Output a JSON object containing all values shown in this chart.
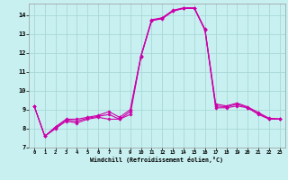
{
  "xlabel": "Windchill (Refroidissement éolien,°C)",
  "bg_color": "#c8f0f0",
  "grid_color": "#a8d8d8",
  "line_color": "#cc00aa",
  "xlim": [
    -0.5,
    23.5
  ],
  "ylim": [
    7,
    14.6
  ],
  "yticks": [
    7,
    8,
    9,
    10,
    11,
    12,
    13,
    14
  ],
  "xticks": [
    0,
    1,
    2,
    3,
    4,
    5,
    6,
    7,
    8,
    9,
    10,
    11,
    12,
    13,
    14,
    15,
    16,
    17,
    18,
    19,
    20,
    21,
    22,
    23
  ],
  "series": [
    [
      9.2,
      7.6,
      8.0,
      8.4,
      8.3,
      8.5,
      8.6,
      8.5,
      8.5,
      8.9,
      11.8,
      13.7,
      13.8,
      14.2,
      14.35,
      14.35,
      13.2,
      9.1,
      9.1,
      9.2,
      9.1,
      8.75,
      8.5,
      8.5
    ],
    [
      9.2,
      7.6,
      8.05,
      8.45,
      8.4,
      8.55,
      8.65,
      8.75,
      8.5,
      8.75,
      11.8,
      13.7,
      13.85,
      14.22,
      14.35,
      14.35,
      13.2,
      9.2,
      9.15,
      9.3,
      9.1,
      8.8,
      8.52,
      8.5
    ],
    [
      9.2,
      7.6,
      8.1,
      8.5,
      8.5,
      8.6,
      8.7,
      8.9,
      8.6,
      9.0,
      11.85,
      13.75,
      13.85,
      14.25,
      14.38,
      14.38,
      13.25,
      9.3,
      9.2,
      9.35,
      9.15,
      8.85,
      8.55,
      8.52
    ]
  ]
}
